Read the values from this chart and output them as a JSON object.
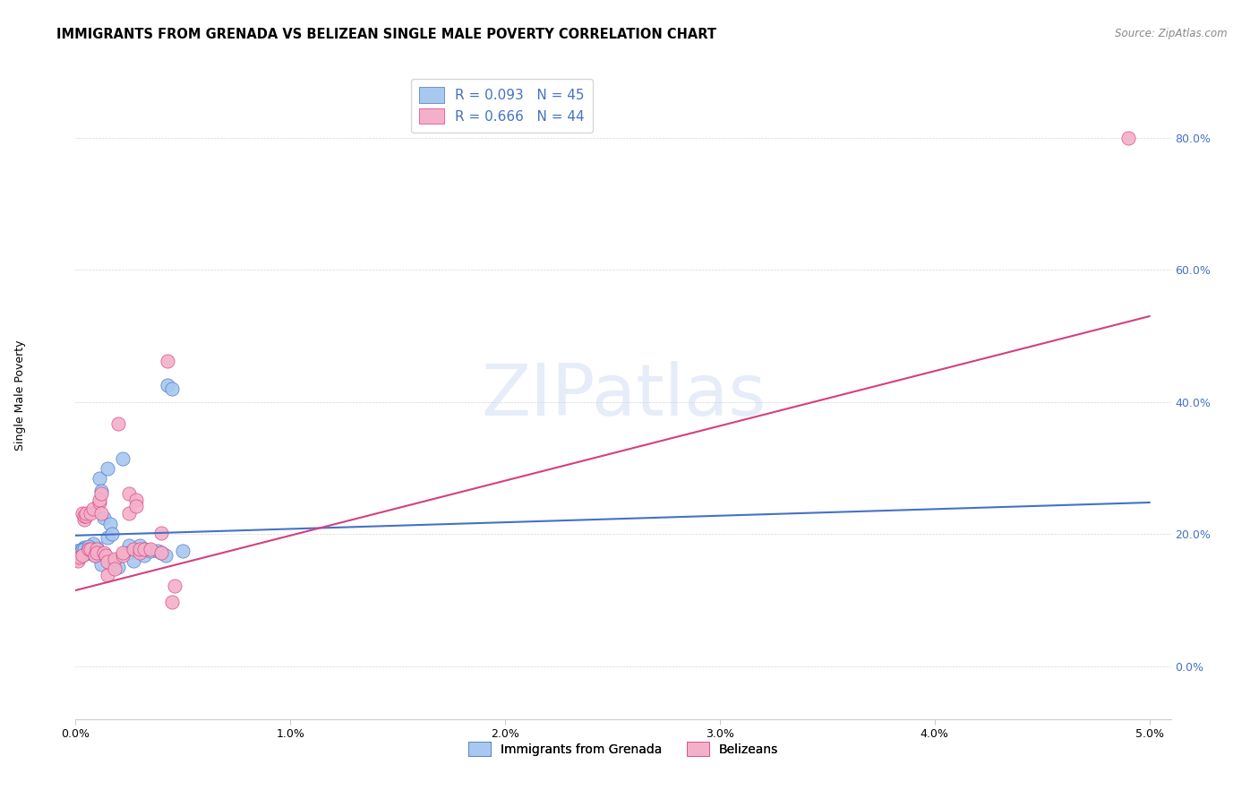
{
  "title": "IMMIGRANTS FROM GRENADA VS BELIZEAN SINGLE MALE POVERTY CORRELATION CHART",
  "source": "Source: ZipAtlas.com",
  "xlabel_ticks": [
    "0.0%",
    "1.0%",
    "2.0%",
    "3.0%",
    "4.0%",
    "5.0%"
  ],
  "ylabel_ticks": [
    "0.0%",
    "20.0%",
    "40.0%",
    "60.0%",
    "80.0%"
  ],
  "ylabel_label": "Single Male Poverty",
  "legend_labels": [
    "Immigrants from Grenada",
    "Belizeans"
  ],
  "blue_r": "R = 0.093",
  "blue_n": "N = 45",
  "pink_r": "R = 0.666",
  "pink_n": "N = 44",
  "blue_color": "#a8c8f0",
  "pink_color": "#f4b0c8",
  "blue_line_color": "#4472c4",
  "pink_line_color": "#d44080",
  "blue_tick_color": "#4472c4",
  "watermark": "ZIPatlas",
  "blue_scatter": [
    [
      0.001,
      0.18
    ],
    [
      0.0012,
      0.155
    ],
    [
      0.0015,
      0.195
    ],
    [
      0.0008,
      0.185
    ],
    [
      0.0005,
      0.175
    ],
    [
      0.0003,
      0.175
    ],
    [
      0.0004,
      0.18
    ],
    [
      0.0006,
      0.18
    ],
    [
      0.0002,
      0.175
    ],
    [
      0.0001,
      0.175
    ],
    [
      0.0001,
      0.17
    ],
    [
      0.0,
      0.175
    ],
    [
      0.0,
      0.17
    ],
    [
      0.0,
      0.172
    ],
    [
      0.0001,
      0.168
    ],
    [
      0.0002,
      0.17
    ],
    [
      0.0003,
      0.178
    ],
    [
      0.0004,
      0.178
    ],
    [
      0.0005,
      0.17
    ],
    [
      0.0006,
      0.182
    ],
    [
      0.0007,
      0.175
    ],
    [
      0.0008,
      0.17
    ],
    [
      0.0009,
      0.168
    ],
    [
      0.0011,
      0.285
    ],
    [
      0.0012,
      0.265
    ],
    [
      0.0013,
      0.225
    ],
    [
      0.0015,
      0.3
    ],
    [
      0.0016,
      0.215
    ],
    [
      0.0017,
      0.2
    ],
    [
      0.0018,
      0.16
    ],
    [
      0.002,
      0.15
    ],
    [
      0.0022,
      0.315
    ],
    [
      0.0025,
      0.183
    ],
    [
      0.0025,
      0.172
    ],
    [
      0.0027,
      0.16
    ],
    [
      0.003,
      0.183
    ],
    [
      0.0032,
      0.178
    ],
    [
      0.0032,
      0.168
    ],
    [
      0.0035,
      0.175
    ],
    [
      0.0038,
      0.175
    ],
    [
      0.004,
      0.172
    ],
    [
      0.0042,
      0.168
    ],
    [
      0.0043,
      0.425
    ],
    [
      0.0045,
      0.42
    ],
    [
      0.005,
      0.175
    ]
  ],
  "pink_scatter": [
    [
      0.0,
      0.162
    ],
    [
      0.0001,
      0.16
    ],
    [
      0.0002,
      0.165
    ],
    [
      0.0003,
      0.168
    ],
    [
      0.0003,
      0.232
    ],
    [
      0.0004,
      0.222
    ],
    [
      0.0004,
      0.228
    ],
    [
      0.0005,
      0.228
    ],
    [
      0.0005,
      0.232
    ],
    [
      0.0006,
      0.178
    ],
    [
      0.0007,
      0.178
    ],
    [
      0.0007,
      0.232
    ],
    [
      0.0008,
      0.238
    ],
    [
      0.0009,
      0.168
    ],
    [
      0.001,
      0.178
    ],
    [
      0.001,
      0.172
    ],
    [
      0.0011,
      0.248
    ],
    [
      0.0011,
      0.252
    ],
    [
      0.0012,
      0.232
    ],
    [
      0.0012,
      0.262
    ],
    [
      0.0013,
      0.172
    ],
    [
      0.0014,
      0.168
    ],
    [
      0.0015,
      0.138
    ],
    [
      0.0015,
      0.158
    ],
    [
      0.0018,
      0.162
    ],
    [
      0.0018,
      0.148
    ],
    [
      0.002,
      0.368
    ],
    [
      0.0022,
      0.168
    ],
    [
      0.0022,
      0.172
    ],
    [
      0.0025,
      0.262
    ],
    [
      0.0025,
      0.232
    ],
    [
      0.0027,
      0.178
    ],
    [
      0.0028,
      0.252
    ],
    [
      0.0028,
      0.242
    ],
    [
      0.003,
      0.172
    ],
    [
      0.003,
      0.178
    ],
    [
      0.0032,
      0.178
    ],
    [
      0.0035,
      0.178
    ],
    [
      0.004,
      0.202
    ],
    [
      0.004,
      0.172
    ],
    [
      0.0043,
      0.462
    ],
    [
      0.0045,
      0.098
    ],
    [
      0.0046,
      0.122
    ],
    [
      0.049,
      0.8
    ]
  ],
  "blue_line_x": [
    0.0,
    0.05
  ],
  "blue_line_y": [
    0.198,
    0.248
  ],
  "pink_line_x": [
    0.0,
    0.05
  ],
  "pink_line_y": [
    0.115,
    0.53
  ],
  "xlim": [
    0.0,
    0.051
  ],
  "ylim": [
    -0.08,
    0.9
  ],
  "xtick_vals": [
    0.0,
    0.01,
    0.02,
    0.03,
    0.04,
    0.05
  ],
  "ytick_vals": [
    0.0,
    0.2,
    0.4,
    0.6,
    0.8
  ],
  "title_fontsize": 10.5,
  "axis_label_fontsize": 9,
  "tick_fontsize": 9,
  "legend_fontsize": 11
}
